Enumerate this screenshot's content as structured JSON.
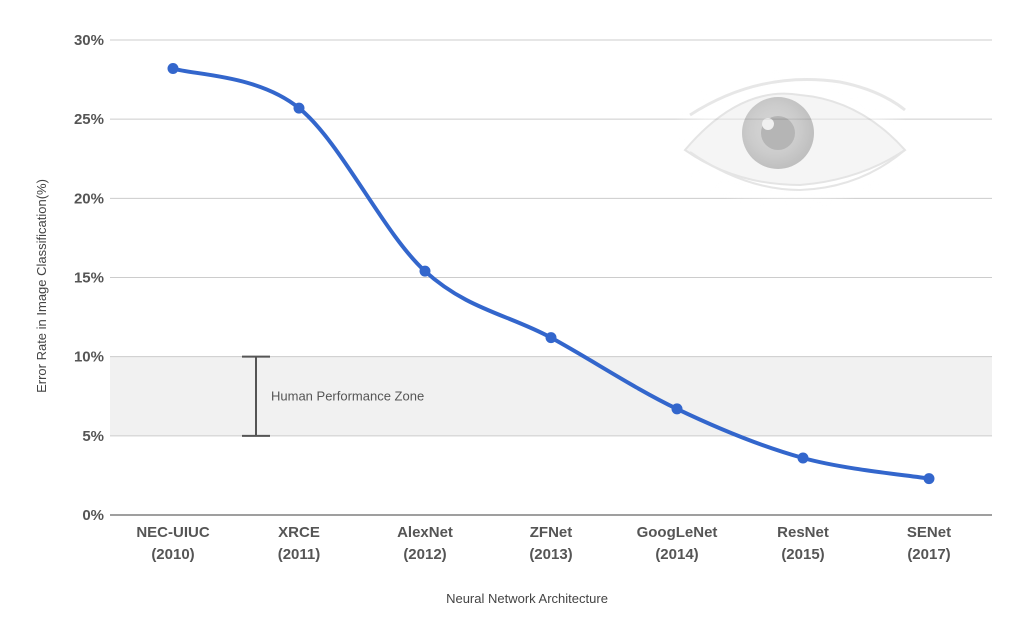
{
  "chart_data": {
    "type": "line",
    "xlabel": "Neural Network Architecture",
    "ylabel": "Error Rate in Image Classification(%)",
    "categories": [
      [
        "NEC-UIUC",
        "(2010)"
      ],
      [
        "XRCE",
        "(2011)"
      ],
      [
        "AlexNet",
        "(2012)"
      ],
      [
        "ZFNet",
        "(2013)"
      ],
      [
        "GoogLeNet",
        "(2014)"
      ],
      [
        "ResNet",
        "(2015)"
      ],
      [
        "SENet",
        "(2017)"
      ]
    ],
    "values": [
      28.2,
      25.7,
      15.4,
      11.2,
      6.7,
      3.6,
      2.3
    ],
    "ylim": [
      0,
      30
    ],
    "yticks": [
      0,
      5,
      10,
      15,
      20,
      25,
      30
    ],
    "ytick_labels": [
      "0%",
      "5%",
      "10%",
      "15%",
      "20%",
      "25%",
      "30%"
    ],
    "grid": "horizontal",
    "line_color": "#3366cc",
    "band": {
      "label": "Human Performance Zone",
      "from": 5,
      "to": 10,
      "color": "#f1f1f1"
    },
    "decoration": "eye-photo"
  }
}
